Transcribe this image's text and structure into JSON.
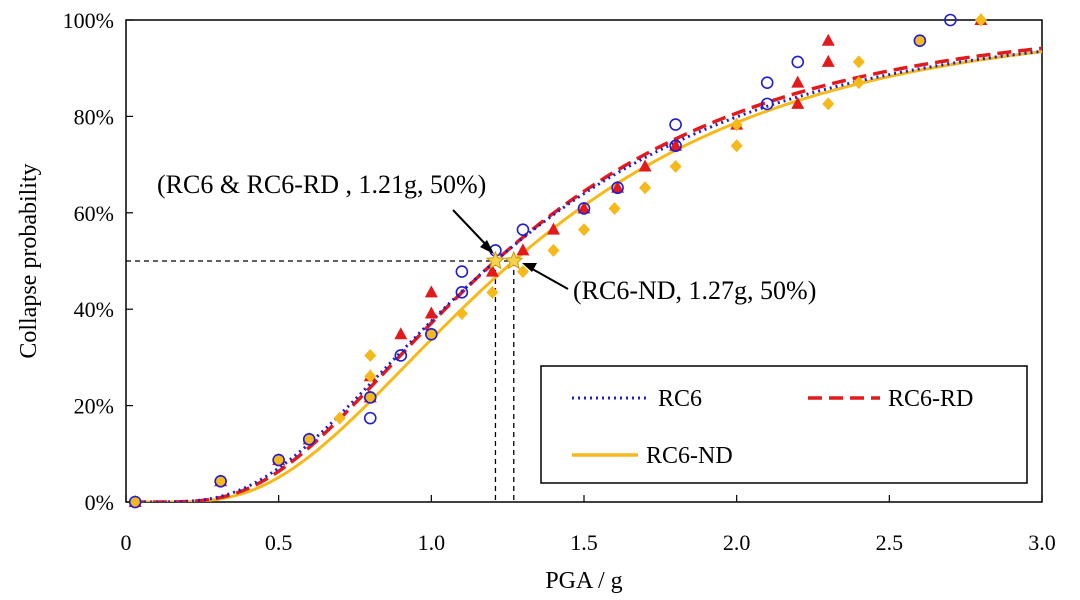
{
  "chart_data": {
    "type": "scatter",
    "title": "",
    "xlabel": "PGA / g",
    "ylabel": "Collapse  probability",
    "xlim": [
      0,
      3.0
    ],
    "ylim": [
      0,
      100
    ],
    "xticks": [
      0,
      0.5,
      1.0,
      1.5,
      2.0,
      2.5,
      3.0
    ],
    "xtick_labels": [
      "0",
      "0.5",
      "1.0",
      "1.5",
      "2.0",
      "2.5",
      "3.0"
    ],
    "yticks": [
      0,
      20,
      40,
      60,
      80,
      100
    ],
    "ytick_labels": [
      "0%",
      "20%",
      "40%",
      "60%",
      "80%",
      "100%"
    ],
    "grid": false,
    "legend_position": "lower-right",
    "series": [
      {
        "name": "RC6",
        "marker": "circle-open",
        "color": "#1f1fcc",
        "line_style": "dotted",
        "fit": {
          "median": 1.21,
          "beta": 0.6
        },
        "points": [
          [
            0.03,
            0
          ],
          [
            0.31,
            4.3
          ],
          [
            0.5,
            8.7
          ],
          [
            0.6,
            13.0
          ],
          [
            0.8,
            17.4
          ],
          [
            0.8,
            21.7
          ],
          [
            0.9,
            30.4
          ],
          [
            1.0,
            34.8
          ],
          [
            1.1,
            43.5
          ],
          [
            1.1,
            47.8
          ],
          [
            1.21,
            52.2
          ],
          [
            1.3,
            56.5
          ],
          [
            1.5,
            60.9
          ],
          [
            1.61,
            65.2
          ],
          [
            1.8,
            73.9
          ],
          [
            1.8,
            78.3
          ],
          [
            2.1,
            82.6
          ],
          [
            2.1,
            87.0
          ],
          [
            2.2,
            91.3
          ],
          [
            2.6,
            95.7
          ],
          [
            2.7,
            100
          ]
        ]
      },
      {
        "name": "RC6-RD",
        "marker": "triangle",
        "color": "#e31a1c",
        "line_style": "dashed",
        "fit": {
          "median": 1.21,
          "beta": 0.58
        },
        "points": [
          [
            0.03,
            0
          ],
          [
            0.31,
            4.3
          ],
          [
            0.5,
            8.7
          ],
          [
            0.6,
            13.0
          ],
          [
            0.8,
            21.7
          ],
          [
            0.8,
            26.1
          ],
          [
            0.9,
            34.8
          ],
          [
            1.0,
            39.1
          ],
          [
            1.0,
            43.5
          ],
          [
            1.2,
            47.8
          ],
          [
            1.3,
            52.2
          ],
          [
            1.4,
            56.5
          ],
          [
            1.5,
            60.9
          ],
          [
            1.61,
            65.2
          ],
          [
            1.7,
            69.6
          ],
          [
            1.8,
            73.9
          ],
          [
            2.0,
            78.3
          ],
          [
            2.2,
            82.6
          ],
          [
            2.2,
            87.0
          ],
          [
            2.3,
            91.3
          ],
          [
            2.3,
            95.7
          ],
          [
            2.8,
            100
          ]
        ]
      },
      {
        "name": "RC6-ND",
        "marker": "diamond",
        "color": "#f6b91b",
        "line_style": "solid",
        "fit": {
          "median": 1.27,
          "beta": 0.57
        },
        "points": [
          [
            0.03,
            0
          ],
          [
            0.31,
            4.3
          ],
          [
            0.5,
            8.7
          ],
          [
            0.6,
            13.0
          ],
          [
            0.7,
            17.4
          ],
          [
            0.8,
            21.7
          ],
          [
            0.8,
            26.1
          ],
          [
            0.8,
            30.4
          ],
          [
            1.0,
            34.8
          ],
          [
            1.1,
            39.1
          ],
          [
            1.2,
            43.5
          ],
          [
            1.3,
            47.8
          ],
          [
            1.4,
            52.2
          ],
          [
            1.5,
            56.5
          ],
          [
            1.6,
            60.9
          ],
          [
            1.7,
            65.2
          ],
          [
            1.8,
            69.6
          ],
          [
            2.0,
            73.9
          ],
          [
            2.0,
            78.3
          ],
          [
            2.3,
            82.6
          ],
          [
            2.4,
            87.0
          ],
          [
            2.4,
            91.3
          ],
          [
            2.6,
            95.7
          ],
          [
            2.8,
            100
          ]
        ]
      }
    ],
    "annotations": [
      {
        "label": "(RC6 & RC6-RD , 1.21g, 50%)",
        "x": 1.21,
        "y": 50
      },
      {
        "label": "(RC6-ND, 1.27g, 50%)",
        "x": 1.27,
        "y": 50
      }
    ]
  }
}
